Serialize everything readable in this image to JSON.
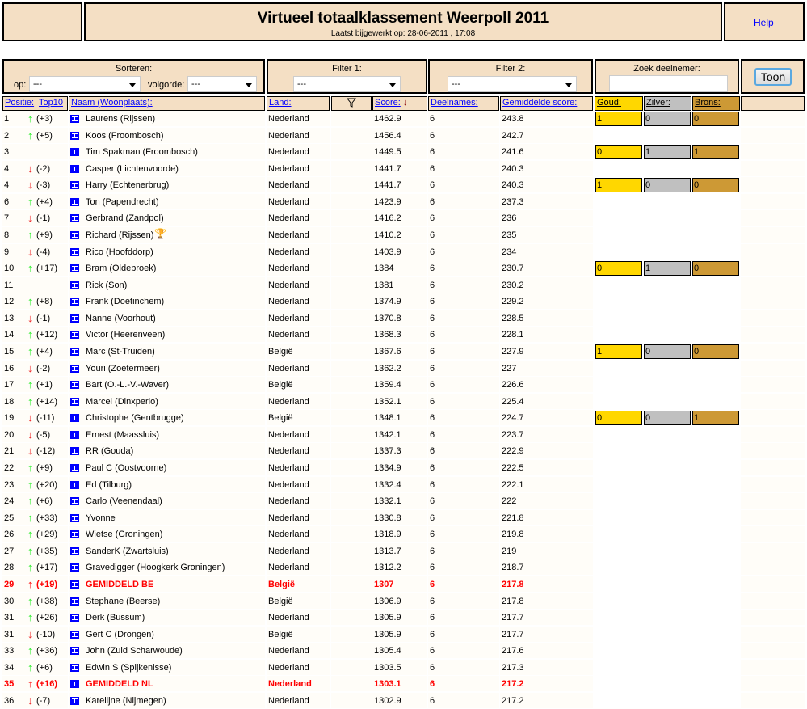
{
  "header": {
    "title": "Virtueel totaalklassement Weerpoll 2011",
    "updated": "Laatst bijgewerkt op: 28-06-2011 , 17:08",
    "help": "Help"
  },
  "controls": {
    "sort_label": "Sorteren:",
    "op_label": "op:",
    "op_value": "---",
    "order_label": "volgorde:",
    "order_value": "---",
    "filter1_label": "Filter 1:",
    "filter1_value": "---",
    "filter2_label": "Filter 2:",
    "filter2_value": "---",
    "search_label": "Zoek deelnemer:",
    "search_value": "",
    "show_button": "Toon"
  },
  "columns": {
    "positie": "Positie:",
    "top10": "Top10",
    "naam": "Naam (Woonplaats):",
    "land": "Land:",
    "score": "Score:",
    "deelnames": "Deelnames:",
    "gemiddelde": "Gemiddelde score:",
    "goud": "Goud:",
    "zilver": "Zilver:",
    "brons": "Brons:"
  },
  "colors": {
    "up": "#22ee22",
    "down": "#ee2222",
    "goud": "#ffd700",
    "zilver": "#c0c0c0",
    "brons": "#cd9935",
    "panel": "#f4dfc4",
    "highlight": "#ff0000"
  },
  "rows": [
    {
      "pos": "1",
      "dir": "up",
      "change": "(+3)",
      "name": "Laurens (Rijssen)",
      "land": "Nederland",
      "score": "1462.9",
      "deel": "6",
      "gem": "243.8",
      "medals": [
        "1",
        "0",
        "0"
      ]
    },
    {
      "pos": "2",
      "dir": "up",
      "change": "(+5)",
      "name": "Koos (Froombosch)",
      "land": "Nederland",
      "score": "1456.4",
      "deel": "6",
      "gem": "242.7"
    },
    {
      "pos": "3",
      "dir": "",
      "change": "",
      "name": "Tim Spakman (Froombosch)",
      "land": "Nederland",
      "score": "1449.5",
      "deel": "6",
      "gem": "241.6",
      "medals": [
        "0",
        "1",
        "1"
      ]
    },
    {
      "pos": "4",
      "dir": "down",
      "change": "(-2)",
      "name": "Casper (Lichtenvoorde)",
      "land": "Nederland",
      "score": "1441.7",
      "deel": "6",
      "gem": "240.3"
    },
    {
      "pos": "4",
      "dir": "down",
      "change": "(-3)",
      "name": "Harry (Echtenerbrug)",
      "land": "Nederland",
      "score": "1441.7",
      "deel": "6",
      "gem": "240.3",
      "medals": [
        "1",
        "0",
        "0"
      ]
    },
    {
      "pos": "6",
      "dir": "up",
      "change": "(+4)",
      "name": "Ton (Papendrecht)",
      "land": "Nederland",
      "score": "1423.9",
      "deel": "6",
      "gem": "237.3"
    },
    {
      "pos": "7",
      "dir": "down",
      "change": "(-1)",
      "name": "Gerbrand (Zandpol)",
      "land": "Nederland",
      "score": "1416.2",
      "deel": "6",
      "gem": "236"
    },
    {
      "pos": "8",
      "dir": "up",
      "change": "(+9)",
      "name": "Richard (Rijssen)",
      "land": "Nederland",
      "score": "1410.2",
      "deel": "6",
      "gem": "235",
      "trophy": true
    },
    {
      "pos": "9",
      "dir": "down",
      "change": "(-4)",
      "name": "Rico (Hoofddorp)",
      "land": "Nederland",
      "score": "1403.9",
      "deel": "6",
      "gem": "234"
    },
    {
      "pos": "10",
      "dir": "up",
      "change": "(+17)",
      "name": "Bram (Oldebroek)",
      "land": "Nederland",
      "score": "1384",
      "deel": "6",
      "gem": "230.7",
      "medals": [
        "0",
        "1",
        "0"
      ]
    },
    {
      "pos": "11",
      "dir": "",
      "change": "",
      "name": "Rick (Son)",
      "land": "Nederland",
      "score": "1381",
      "deel": "6",
      "gem": "230.2"
    },
    {
      "pos": "12",
      "dir": "up",
      "change": "(+8)",
      "name": "Frank (Doetinchem)",
      "land": "Nederland",
      "score": "1374.9",
      "deel": "6",
      "gem": "229.2"
    },
    {
      "pos": "13",
      "dir": "down",
      "change": "(-1)",
      "name": "Nanne (Voorhout)",
      "land": "Nederland",
      "score": "1370.8",
      "deel": "6",
      "gem": "228.5"
    },
    {
      "pos": "14",
      "dir": "up",
      "change": "(+12)",
      "name": "Victor (Heerenveen)",
      "land": "Nederland",
      "score": "1368.3",
      "deel": "6",
      "gem": "228.1"
    },
    {
      "pos": "15",
      "dir": "up",
      "change": "(+4)",
      "name": "Marc (St-Truiden)",
      "land": "België",
      "score": "1367.6",
      "deel": "6",
      "gem": "227.9",
      "medals": [
        "1",
        "0",
        "0"
      ]
    },
    {
      "pos": "16",
      "dir": "down",
      "change": "(-2)",
      "name": "Youri (Zoetermeer)",
      "land": "Nederland",
      "score": "1362.2",
      "deel": "6",
      "gem": "227"
    },
    {
      "pos": "17",
      "dir": "up",
      "change": "(+1)",
      "name": "Bart (O.-L.-V.-Waver)",
      "land": "België",
      "score": "1359.4",
      "deel": "6",
      "gem": "226.6"
    },
    {
      "pos": "18",
      "dir": "up",
      "change": "(+14)",
      "name": "Marcel (Dinxperlo)",
      "land": "Nederland",
      "score": "1352.1",
      "deel": "6",
      "gem": "225.4"
    },
    {
      "pos": "19",
      "dir": "down",
      "change": "(-11)",
      "name": "Christophe (Gentbrugge)",
      "land": "België",
      "score": "1348.1",
      "deel": "6",
      "gem": "224.7",
      "medals": [
        "0",
        "0",
        "1"
      ]
    },
    {
      "pos": "20",
      "dir": "down",
      "change": "(-5)",
      "name": "Ernest (Maassluis)",
      "land": "Nederland",
      "score": "1342.1",
      "deel": "6",
      "gem": "223.7"
    },
    {
      "pos": "21",
      "dir": "down",
      "change": "(-12)",
      "name": "RR (Gouda)",
      "land": "Nederland",
      "score": "1337.3",
      "deel": "6",
      "gem": "222.9"
    },
    {
      "pos": "22",
      "dir": "up",
      "change": "(+9)",
      "name": "Paul C (Oostvoorne)",
      "land": "Nederland",
      "score": "1334.9",
      "deel": "6",
      "gem": "222.5"
    },
    {
      "pos": "23",
      "dir": "up",
      "change": "(+20)",
      "name": "Ed (Tilburg)",
      "land": "Nederland",
      "score": "1332.4",
      "deel": "6",
      "gem": "222.1"
    },
    {
      "pos": "24",
      "dir": "up",
      "change": "(+6)",
      "name": "Carlo (Veenendaal)",
      "land": "Nederland",
      "score": "1332.1",
      "deel": "6",
      "gem": "222"
    },
    {
      "pos": "25",
      "dir": "up",
      "change": "(+33)",
      "name": "Yvonne",
      "land": "Nederland",
      "score": "1330.8",
      "deel": "6",
      "gem": "221.8"
    },
    {
      "pos": "26",
      "dir": "up",
      "change": "(+29)",
      "name": "Wietse (Groningen)",
      "land": "Nederland",
      "score": "1318.9",
      "deel": "6",
      "gem": "219.8"
    },
    {
      "pos": "27",
      "dir": "up",
      "change": "(+35)",
      "name": "SanderK (Zwartsluis)",
      "land": "Nederland",
      "score": "1313.7",
      "deel": "6",
      "gem": "219"
    },
    {
      "pos": "28",
      "dir": "up",
      "change": "(+17)",
      "name": "Gravedigger (Hoogkerk Groningen)",
      "land": "Nederland",
      "score": "1312.2",
      "deel": "6",
      "gem": "218.7"
    },
    {
      "pos": "29",
      "dir": "up",
      "change": "(+19)",
      "name": "GEMIDDELD BE",
      "land": "België",
      "score": "1307",
      "deel": "6",
      "gem": "217.8",
      "highlight": true
    },
    {
      "pos": "30",
      "dir": "up",
      "change": "(+38)",
      "name": "Stephane (Beerse)",
      "land": "België",
      "score": "1306.9",
      "deel": "6",
      "gem": "217.8"
    },
    {
      "pos": "31",
      "dir": "up",
      "change": "(+26)",
      "name": "Derk (Bussum)",
      "land": "Nederland",
      "score": "1305.9",
      "deel": "6",
      "gem": "217.7"
    },
    {
      "pos": "31",
      "dir": "down",
      "change": "(-10)",
      "name": "Gert C (Drongen)",
      "land": "België",
      "score": "1305.9",
      "deel": "6",
      "gem": "217.7"
    },
    {
      "pos": "33",
      "dir": "up",
      "change": "(+36)",
      "name": "John (Zuid Scharwoude)",
      "land": "Nederland",
      "score": "1305.4",
      "deel": "6",
      "gem": "217.6"
    },
    {
      "pos": "34",
      "dir": "up",
      "change": "(+6)",
      "name": "Edwin S (Spijkenisse)",
      "land": "Nederland",
      "score": "1303.5",
      "deel": "6",
      "gem": "217.3"
    },
    {
      "pos": "35",
      "dir": "up",
      "change": "(+16)",
      "name": "GEMIDDELD NL",
      "land": "Nederland",
      "score": "1303.1",
      "deel": "6",
      "gem": "217.2",
      "highlight": true
    },
    {
      "pos": "36",
      "dir": "down",
      "change": "(-7)",
      "name": "Karelijne (Nijmegen)",
      "land": "Nederland",
      "score": "1302.9",
      "deel": "6",
      "gem": "217.2"
    }
  ]
}
